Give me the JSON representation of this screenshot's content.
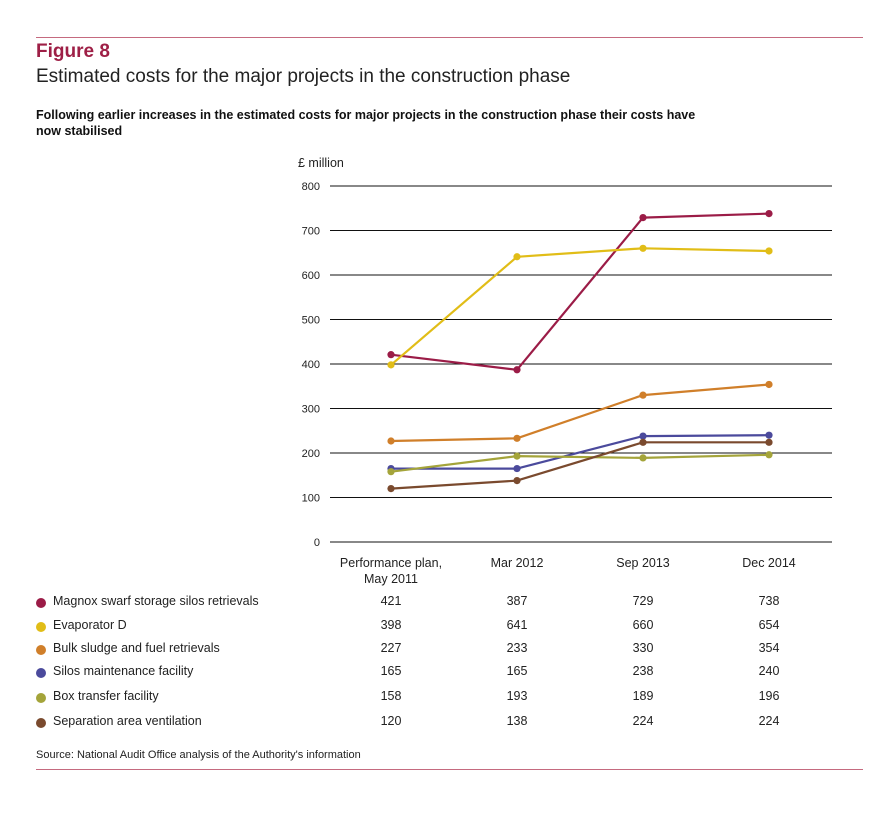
{
  "figure": {
    "label": "Figure 8",
    "title": "Estimated costs for the major projects in the construction phase",
    "subtitle": "Following earlier increases in the estimated costs for major projects in the construction phase their costs have now stabilised",
    "source": "Source: National Audit Office analysis of the Authority's information"
  },
  "chart_data": {
    "type": "line",
    "ylabel": "£ million",
    "ylim": [
      0,
      800
    ],
    "yticks": [
      0,
      100,
      200,
      300,
      400,
      500,
      600,
      700,
      800
    ],
    "grid": true,
    "categories": [
      "Performance plan, May 2011",
      "Mar 2012",
      "Sep 2013",
      "Dec 2014"
    ],
    "category_lines": [
      [
        "Performance plan,",
        "May 2011"
      ],
      [
        "Mar 2012"
      ],
      [
        "Sep 2013"
      ],
      [
        "Dec 2014"
      ]
    ],
    "legend_placement": "bottom table",
    "series": [
      {
        "name": "Magnox swarf storage silos retrievals",
        "color": "#9b1c47",
        "values": [
          421,
          387,
          729,
          738
        ]
      },
      {
        "name": "Evaporator D",
        "color": "#e1bd17",
        "values": [
          398,
          641,
          660,
          654
        ]
      },
      {
        "name": "Bulk sludge and fuel retrievals",
        "color": "#d07f2a",
        "values": [
          227,
          233,
          330,
          354
        ]
      },
      {
        "name": "Silos maintenance facility",
        "color": "#4b4a9c",
        "values": [
          165,
          165,
          238,
          240
        ]
      },
      {
        "name": "Box transfer facility",
        "color": "#a4a43a",
        "values": [
          158,
          193,
          189,
          196
        ]
      },
      {
        "name": "Separation area ventilation",
        "color": "#7a4a2e",
        "values": [
          120,
          138,
          224,
          224
        ]
      }
    ]
  }
}
